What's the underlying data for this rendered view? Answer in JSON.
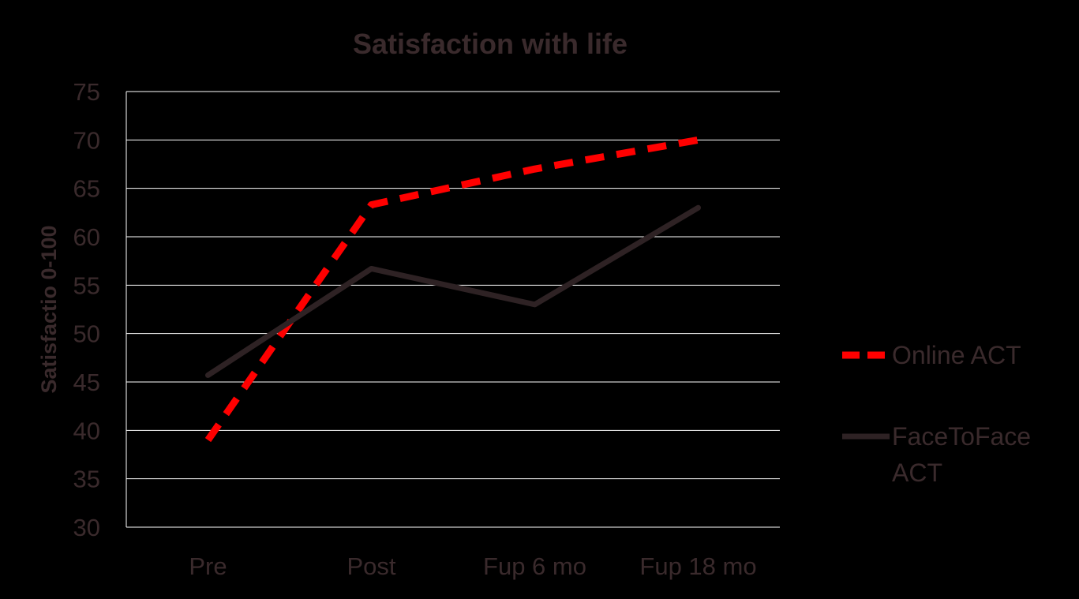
{
  "colors": {
    "background": "#000000",
    "text": "#3a2a2c",
    "grid": "#ffffff",
    "online": "#ff0000",
    "facetoface": "#2e2224"
  },
  "chart_data": {
    "type": "line",
    "title": "Satisfaction with life",
    "xlabel": "",
    "ylabel": "Satisfactio 0-100",
    "categories": [
      "Pre",
      "Post",
      "Fup 6 mo",
      "Fup 18 mo"
    ],
    "ylim": [
      30,
      75
    ],
    "yticks": [
      30,
      35,
      40,
      45,
      50,
      55,
      60,
      65,
      70,
      75
    ],
    "grid": true,
    "legend_position": "right",
    "series": [
      {
        "name": "Online ACT",
        "values": [
          39,
          63.3,
          67,
          70
        ],
        "style": "dashed",
        "color": "#ff0000"
      },
      {
        "name": "FaceToFace ACT",
        "name_lines": [
          "FaceToFace",
          "ACT"
        ],
        "values": [
          45.7,
          56.7,
          53,
          63
        ],
        "style": "solid",
        "color": "#2e2224"
      }
    ]
  }
}
